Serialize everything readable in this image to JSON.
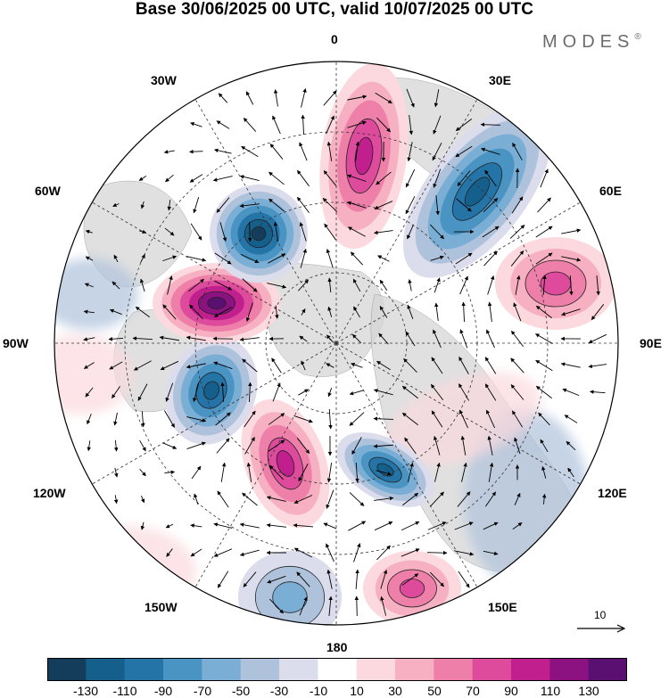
{
  "title": "Base 30/06/2025 00 UTC, valid 10/07/2025 00 UTC",
  "brand": {
    "name": "MODES",
    "mark": "®"
  },
  "map": {
    "projection": "north-polar-stereographic",
    "center": "North Pole",
    "longitude_labels": [
      {
        "key": "0",
        "text": "0"
      },
      {
        "key": "30E",
        "text": "30E"
      },
      {
        "key": "60E",
        "text": "60E"
      },
      {
        "key": "90E",
        "text": "90E"
      },
      {
        "key": "120E",
        "text": "120E"
      },
      {
        "key": "150E",
        "text": "150E"
      },
      {
        "key": "180",
        "text": "180"
      },
      {
        "key": "150W",
        "text": "150W"
      },
      {
        "key": "120W",
        "text": "120W"
      },
      {
        "key": "90W",
        "text": "90W"
      },
      {
        "key": "60W",
        "text": "60W"
      },
      {
        "key": "30W",
        "text": "30W"
      }
    ],
    "anomaly_centers": [
      {
        "name": "positive-anomaly-0lon",
        "lon_deg": 0,
        "sign": "positive",
        "peak": 90
      },
      {
        "name": "negative-anomaly-30E",
        "lon_deg": 30,
        "sign": "negative",
        "peak": -110
      },
      {
        "name": "positive-anomaly-75E",
        "lon_deg": 75,
        "sign": "positive",
        "peak": 70
      },
      {
        "name": "negative-anomaly-155E",
        "lon_deg": 155,
        "sign": "negative",
        "peak": -110
      },
      {
        "name": "positive-anomaly-150E-south",
        "lon_deg": 150,
        "sign": "positive",
        "peak": 70
      },
      {
        "name": "negative-anomaly-180",
        "lon_deg": 180,
        "sign": "negative",
        "peak": -50
      },
      {
        "name": "positive-anomaly-160W",
        "lon_deg": -160,
        "sign": "positive",
        "peak": 90
      },
      {
        "name": "negative-anomaly-115W",
        "lon_deg": -115,
        "sign": "negative",
        "peak": -110
      },
      {
        "name": "positive-anomaly-80W",
        "lon_deg": -80,
        "sign": "positive",
        "peak": 130
      },
      {
        "name": "negative-anomaly-30W",
        "lon_deg": -30,
        "sign": "negative",
        "peak": -130
      }
    ],
    "reference_vector": {
      "label": "10"
    }
  },
  "colorbar": {
    "ticks": [
      "-130",
      "-110",
      "-90",
      "-70",
      "-50",
      "-30",
      "-10",
      "10",
      "30",
      "50",
      "70",
      "90",
      "110",
      "130"
    ],
    "colors": [
      "#143d5b",
      "#155f8c",
      "#2474a8",
      "#4a94c4",
      "#7aaed4",
      "#aec2dc",
      "#dbdcec",
      "#ffffff",
      "#fbd9de",
      "#f6b0c1",
      "#ee7fa9",
      "#de4b9c",
      "#c01f8d",
      "#8c1282",
      "#5a1070"
    ]
  }
}
